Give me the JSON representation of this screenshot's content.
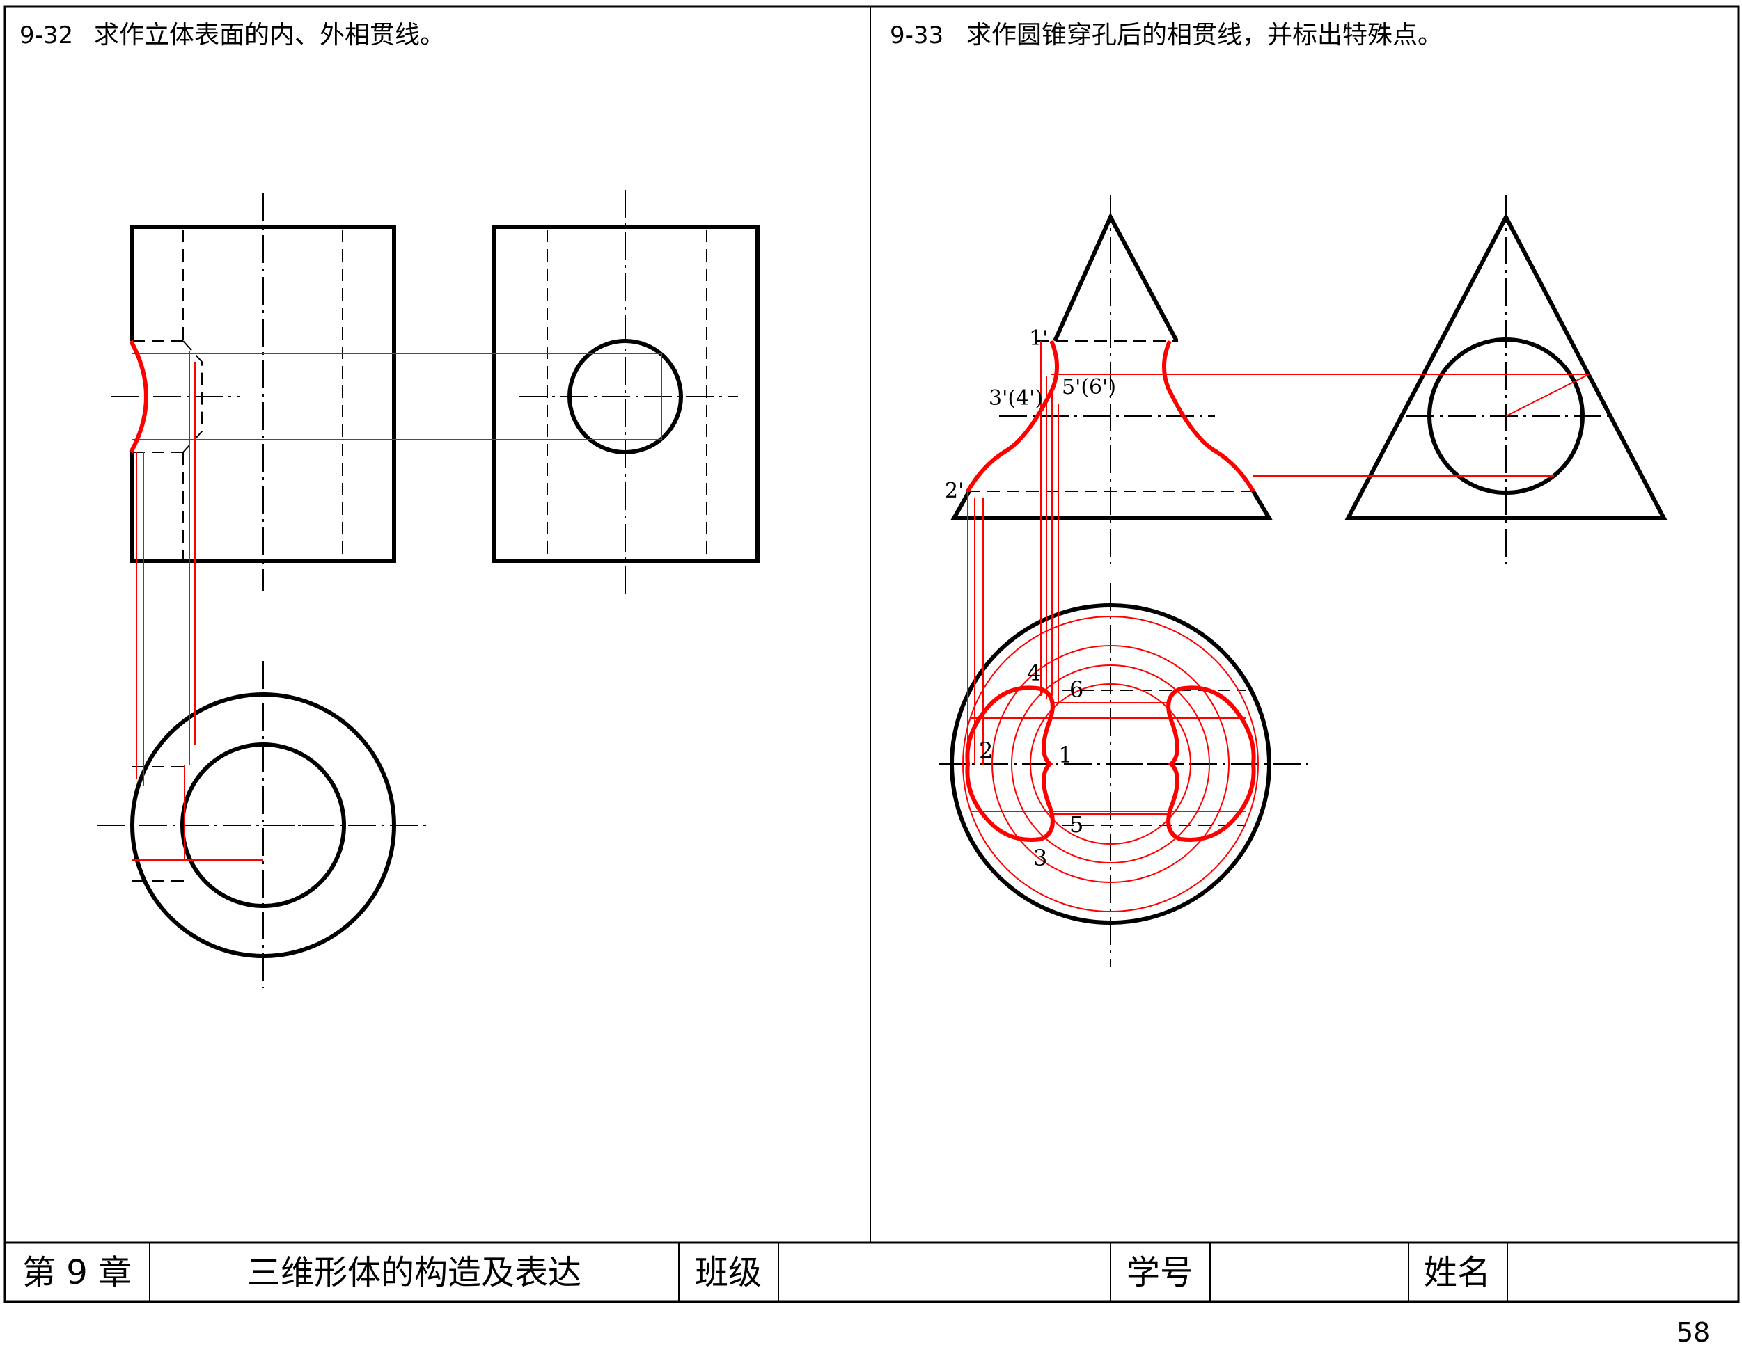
{
  "problems": [
    {
      "number": "9-32",
      "text": "求作立体表面的内、外相贯线。"
    },
    {
      "number": "9-33",
      "text": "求作圆锥穿孔后的相贯线，并标出特殊点。"
    }
  ],
  "point_labels": {
    "p1p": "1'",
    "p34p": "3'(4')",
    "p56p": "5'(6')",
    "p2p": "2'",
    "p4": "4",
    "p6": "6",
    "p2": "2",
    "p1": "1",
    "p5": "5",
    "p3": "3"
  },
  "footer": {
    "chapter": "第 9 章",
    "title": "三维形体的构造及表达",
    "class_label": "班级",
    "student_id_label": "学号",
    "name_label": "姓名"
  },
  "page_number": "58",
  "colors": {
    "line": "#000000",
    "construction": "#ff0000",
    "frame": "#000000"
  }
}
